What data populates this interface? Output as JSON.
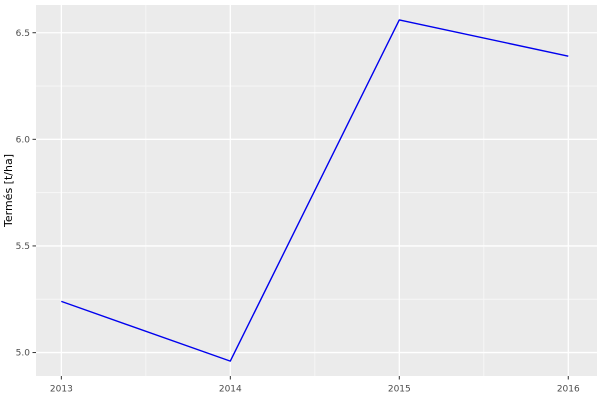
{
  "chart_data": {
    "type": "line",
    "title": "",
    "xlabel": "",
    "ylabel": "Termés [t/ha]",
    "x": [
      2013,
      2014,
      2015,
      2016
    ],
    "values": [
      5.24,
      4.96,
      6.56,
      6.39
    ],
    "x_ticks": [
      2013,
      2014,
      2015,
      2016
    ],
    "x_tick_labels": [
      "2013",
      "2014",
      "2015",
      "2016"
    ],
    "y_ticks": [
      5.0,
      5.5,
      6.0,
      6.5
    ],
    "y_tick_labels": [
      "5.0",
      "5.5",
      "6.0",
      "6.5"
    ],
    "x_minor_gridlines": [
      2013.5,
      2014.5,
      2015.5
    ],
    "y_minor_gridlines": [
      5.25,
      5.75,
      6.25
    ],
    "xlim": [
      2012.85,
      2016.17
    ],
    "ylim": [
      4.89,
      6.63
    ],
    "grid": true,
    "legend": "none",
    "colors": {
      "line": "#0000ee",
      "panel_bg": "#ebebeb",
      "grid_major": "#ffffff",
      "grid_minor": "#f7f7f7",
      "tick_mark": "#333333",
      "tick_label": "#4d4d4d",
      "axis_title": "#000000",
      "figure_bg": "#ffffff"
    }
  }
}
